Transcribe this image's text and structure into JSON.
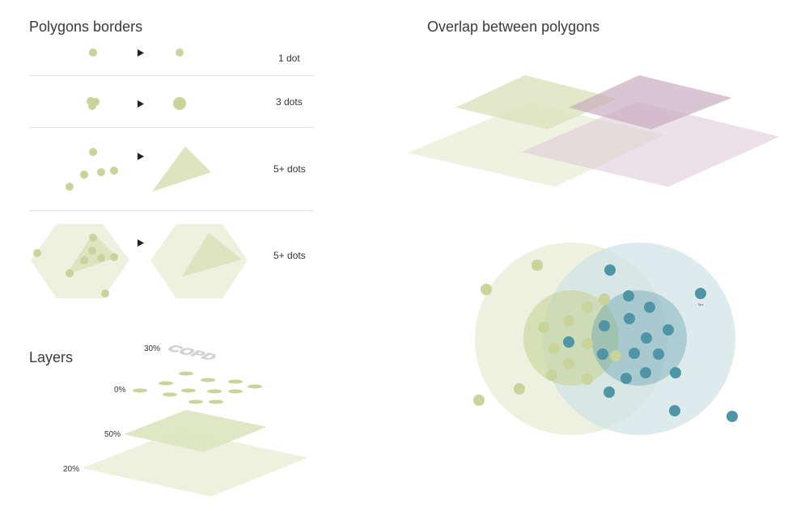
{
  "titles": {
    "polygons_borders": "Polygons borders",
    "overlap": "Overlap between polygons",
    "layers": "Layers"
  },
  "borders_rows": [
    {
      "label": "1 dot"
    },
    {
      "label": "3 dots"
    },
    {
      "label": "5+ dots"
    },
    {
      "label": "5+ dots"
    }
  ],
  "layers": {
    "copd_text": "COPD",
    "pct_top": "30%",
    "pct_dots": "0%",
    "pct_mid": "50%",
    "pct_bottom": "20%"
  },
  "venn": {
    "tiny_label": "Tips"
  },
  "colors": {
    "green_dot": "#c8d49a",
    "green_fill": "#dde4bf",
    "green_pale": "#eef1de",
    "teal_dot": "#4f95a6",
    "teal_fill": "#cfe3e6",
    "purple_fill": "#c9aebf",
    "arrow": "#222222"
  }
}
